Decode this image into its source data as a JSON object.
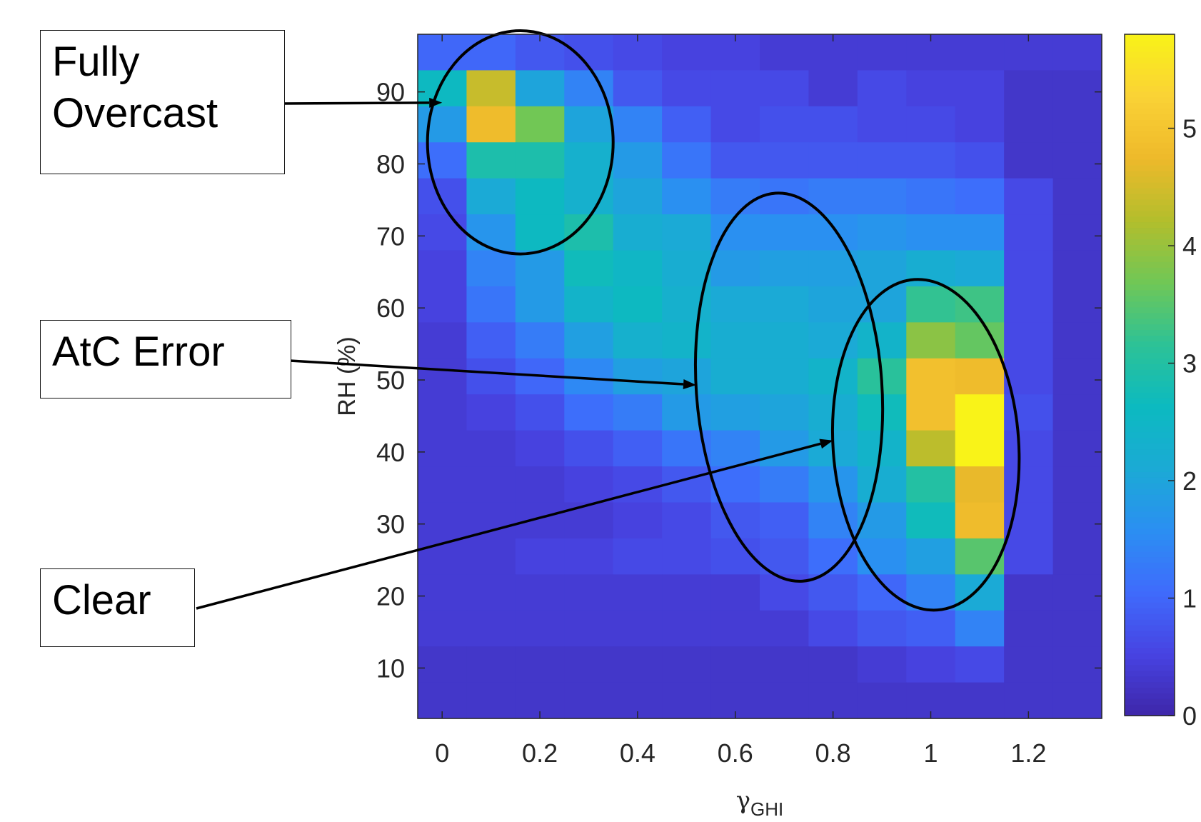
{
  "chart_data": {
    "type": "heatmap",
    "xlabel": "γ",
    "xlabel_sub": "GHI",
    "ylabel": "RH (%)",
    "xlim": [
      -0.05,
      1.35
    ],
    "ylim": [
      3,
      98
    ],
    "x_ticks": [
      0,
      0.2,
      0.4,
      0.6,
      0.8,
      1,
      1.2
    ],
    "x_tick_labels": [
      "0",
      "0.2",
      "0.4",
      "0.6",
      "0.8",
      "1",
      "1.2"
    ],
    "y_ticks": [
      10,
      20,
      30,
      40,
      50,
      60,
      70,
      80,
      90
    ],
    "y_tick_labels": [
      "10",
      "20",
      "30",
      "40",
      "50",
      "60",
      "70",
      "80",
      "90"
    ],
    "x_bin_edges": [
      -0.05,
      0.05,
      0.15,
      0.25,
      0.35,
      0.45,
      0.55,
      0.65,
      0.75,
      0.85,
      0.95,
      1.05,
      1.15,
      1.25,
      1.35
    ],
    "y_bin_edges": [
      98,
      93,
      88,
      83,
      78,
      73,
      68,
      63,
      58,
      53,
      48,
      43,
      38,
      33,
      28,
      23,
      18,
      13,
      8,
      3
    ],
    "colorbar": {
      "clim": [
        0,
        5.8
      ],
      "visible_tick_labels": [
        "5",
        "4",
        "3",
        "2",
        "1",
        "0"
      ],
      "tick_values": [
        5,
        4,
        3,
        2,
        1,
        0
      ]
    },
    "grid_values": [
      [
        1.0,
        1.0,
        0.8,
        0.7,
        0.6,
        0.5,
        0.5,
        0.4,
        0.4,
        0.4,
        0.4,
        0.4,
        0.4,
        0.4
      ],
      [
        2.6,
        4.4,
        2.0,
        1.4,
        0.8,
        0.6,
        0.6,
        0.6,
        0.4,
        0.6,
        0.5,
        0.5,
        0.3,
        0.3
      ],
      [
        1.8,
        4.8,
        3.7,
        2.0,
        1.4,
        0.9,
        0.6,
        0.7,
        0.7,
        0.6,
        0.6,
        0.5,
        0.3,
        0.3
      ],
      [
        1.1,
        2.9,
        2.9,
        2.3,
        1.8,
        1.2,
        0.8,
        0.8,
        0.8,
        0.8,
        0.8,
        0.7,
        0.3,
        0.3
      ],
      [
        0.7,
        2.1,
        2.6,
        2.3,
        2.0,
        1.6,
        1.3,
        1.2,
        1.3,
        1.3,
        1.2,
        1.1,
        0.6,
        0.3
      ],
      [
        0.6,
        1.7,
        2.6,
        2.9,
        2.2,
        2.1,
        1.6,
        1.6,
        1.6,
        1.7,
        1.6,
        1.6,
        0.6,
        0.3
      ],
      [
        0.5,
        1.4,
        1.8,
        2.7,
        2.5,
        2.2,
        1.8,
        1.9,
        1.9,
        2.0,
        2.2,
        2.1,
        0.6,
        0.3
      ],
      [
        0.5,
        1.2,
        1.8,
        2.4,
        2.6,
        2.3,
        2.1,
        2.1,
        2.0,
        2.0,
        3.2,
        3.3,
        0.6,
        0.3
      ],
      [
        0.4,
        0.9,
        1.3,
        1.9,
        2.3,
        2.4,
        2.2,
        2.2,
        2.1,
        2.4,
        3.9,
        3.6,
        0.6,
        0.3
      ],
      [
        0.4,
        0.7,
        1.0,
        1.5,
        1.9,
        2.0,
        2.2,
        2.2,
        2.4,
        3.1,
        4.9,
        4.8,
        0.6,
        0.3
      ],
      [
        0.4,
        0.5,
        0.7,
        1.1,
        1.3,
        1.8,
        1.9,
        2.0,
        2.2,
        2.7,
        4.9,
        5.8,
        0.7,
        0.3
      ],
      [
        0.4,
        0.4,
        0.5,
        0.7,
        0.9,
        1.2,
        1.4,
        1.8,
        2.1,
        2.4,
        4.3,
        5.8,
        0.6,
        0.3
      ],
      [
        0.4,
        0.4,
        0.4,
        0.5,
        0.6,
        0.8,
        1.1,
        1.3,
        1.7,
        2.2,
        3.0,
        4.7,
        0.6,
        0.3
      ],
      [
        0.4,
        0.4,
        0.4,
        0.4,
        0.5,
        0.6,
        0.8,
        0.9,
        1.4,
        1.8,
        2.7,
        4.8,
        0.6,
        0.3
      ],
      [
        0.4,
        0.4,
        0.5,
        0.5,
        0.6,
        0.6,
        0.7,
        0.8,
        1.1,
        1.6,
        1.9,
        3.5,
        0.6,
        0.3
      ],
      [
        0.4,
        0.4,
        0.4,
        0.4,
        0.4,
        0.4,
        0.4,
        0.6,
        0.8,
        1.0,
        1.4,
        2.1,
        0.3,
        0.3
      ],
      [
        0.4,
        0.4,
        0.4,
        0.4,
        0.4,
        0.4,
        0.4,
        0.4,
        0.6,
        0.8,
        0.9,
        1.4,
        0.3,
        0.3
      ],
      [
        0.3,
        0.3,
        0.3,
        0.3,
        0.3,
        0.3,
        0.3,
        0.3,
        0.3,
        0.4,
        0.5,
        0.6,
        0.3,
        0.3
      ],
      [
        0.3,
        0.3,
        0.3,
        0.3,
        0.3,
        0.3,
        0.3,
        0.3,
        0.3,
        0.3,
        0.3,
        0.3,
        0.3,
        0.3
      ]
    ],
    "annotations": [
      {
        "label": "Fully\nOvercast",
        "target": [
          0.0,
          88.5
        ],
        "ellipse": {
          "cx": 0.16,
          "cy": 83,
          "rx": 0.19,
          "ry": 15.5
        }
      },
      {
        "label": "AtC Error",
        "target": [
          0.52,
          49.3
        ],
        "ellipse": {
          "cx": 0.71,
          "cy": 49,
          "rx": 0.19,
          "ry": 27
        }
      },
      {
        "label": "Clear",
        "target": [
          0.8,
          41.6
        ],
        "ellipse": {
          "cx": 0.99,
          "cy": 41,
          "rx": 0.19,
          "ry": 23
        }
      }
    ],
    "colormap": "parula",
    "grid": false
  },
  "colors": {
    "parula": [
      "#3e26a8",
      "#4743e2",
      "#3f6bfc",
      "#2b8ff2",
      "#1baad5",
      "#0cbac0",
      "#2dc296",
      "#70c756",
      "#b3be2c",
      "#eeb92b",
      "#fad236",
      "#f9f318"
    ]
  }
}
